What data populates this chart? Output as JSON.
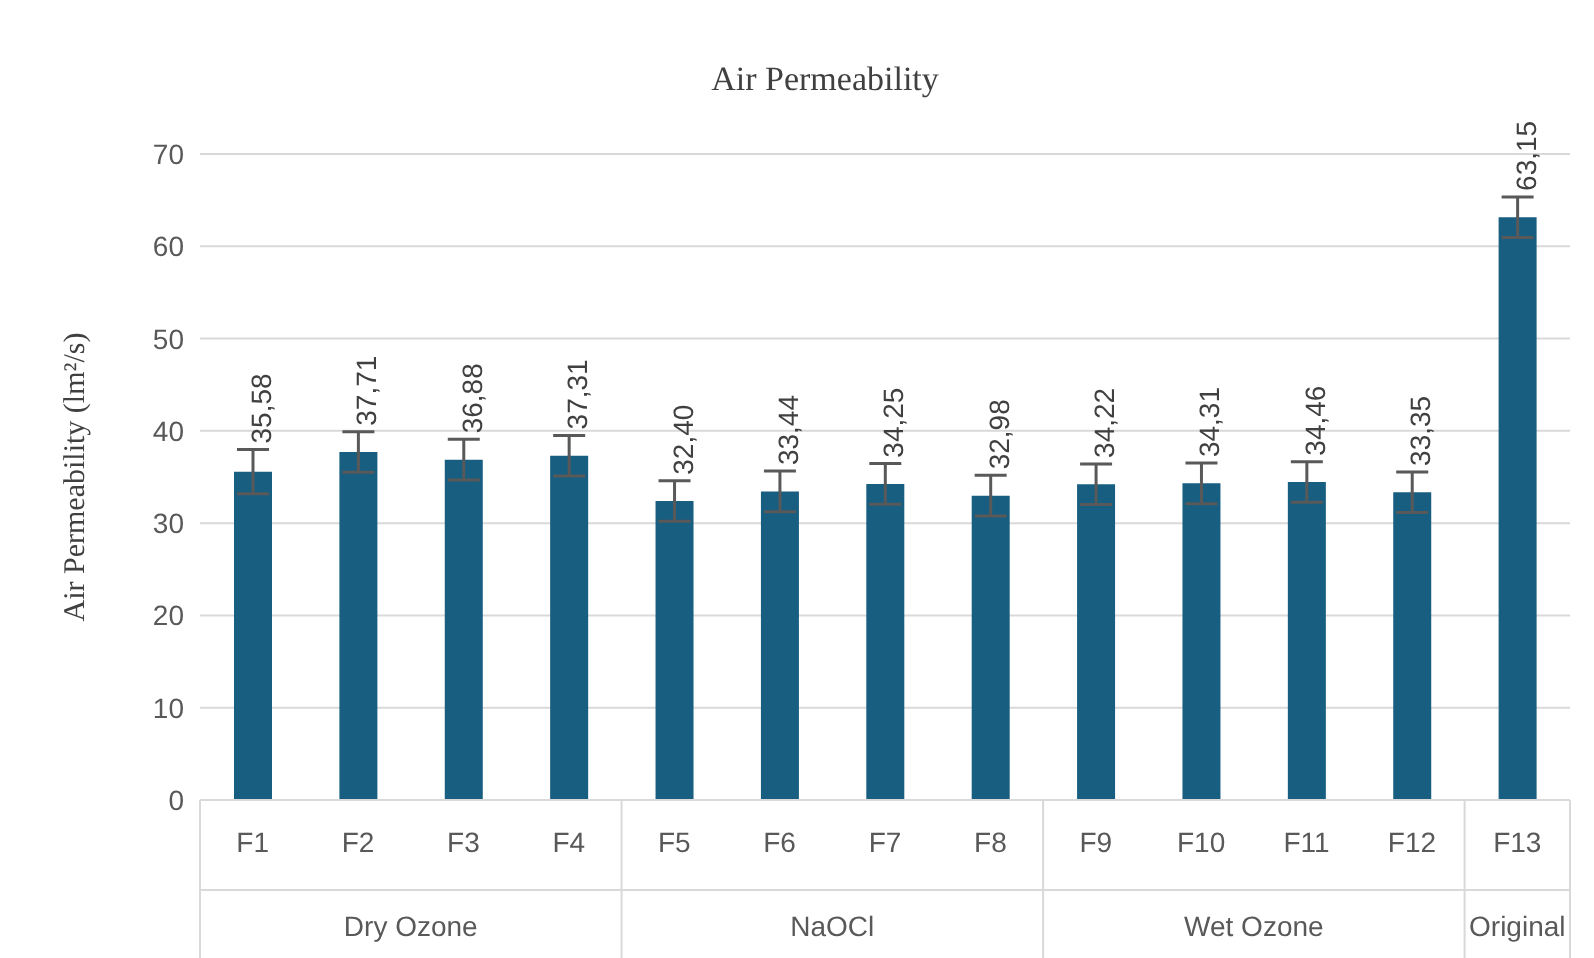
{
  "chart_data": {
    "type": "bar",
    "title": "Air Permeability",
    "ylabel": "Air Permeability  (lm²/s)",
    "categories": [
      "F1",
      "F2",
      "F3",
      "F4",
      "F5",
      "F6",
      "F7",
      "F8",
      "F9",
      "F10",
      "F11",
      "F12",
      "F13"
    ],
    "values": [
      35.58,
      37.71,
      36.88,
      37.31,
      32.4,
      33.44,
      34.25,
      32.98,
      34.22,
      34.31,
      34.46,
      33.35,
      63.15
    ],
    "value_labels": [
      "35,58",
      "37,71",
      "36,88",
      "37,31",
      "32,40",
      "33,44",
      "34,25",
      "32,98",
      "34,22",
      "34,31",
      "34,46",
      "33,35",
      "63,15"
    ],
    "errors": [
      2.4,
      2.2,
      2.2,
      2.2,
      2.2,
      2.2,
      2.2,
      2.2,
      2.2,
      2.2,
      2.2,
      2.2,
      2.2
    ],
    "color": "#175e81",
    "ylim": [
      0,
      70
    ],
    "yticks": [
      0,
      10,
      20,
      30,
      40,
      50,
      60,
      70
    ],
    "grid": "y",
    "legend": false,
    "annotations": [
      "Dry Ozone",
      "NaOCl",
      "Wet Ozone",
      "Original"
    ]
  }
}
